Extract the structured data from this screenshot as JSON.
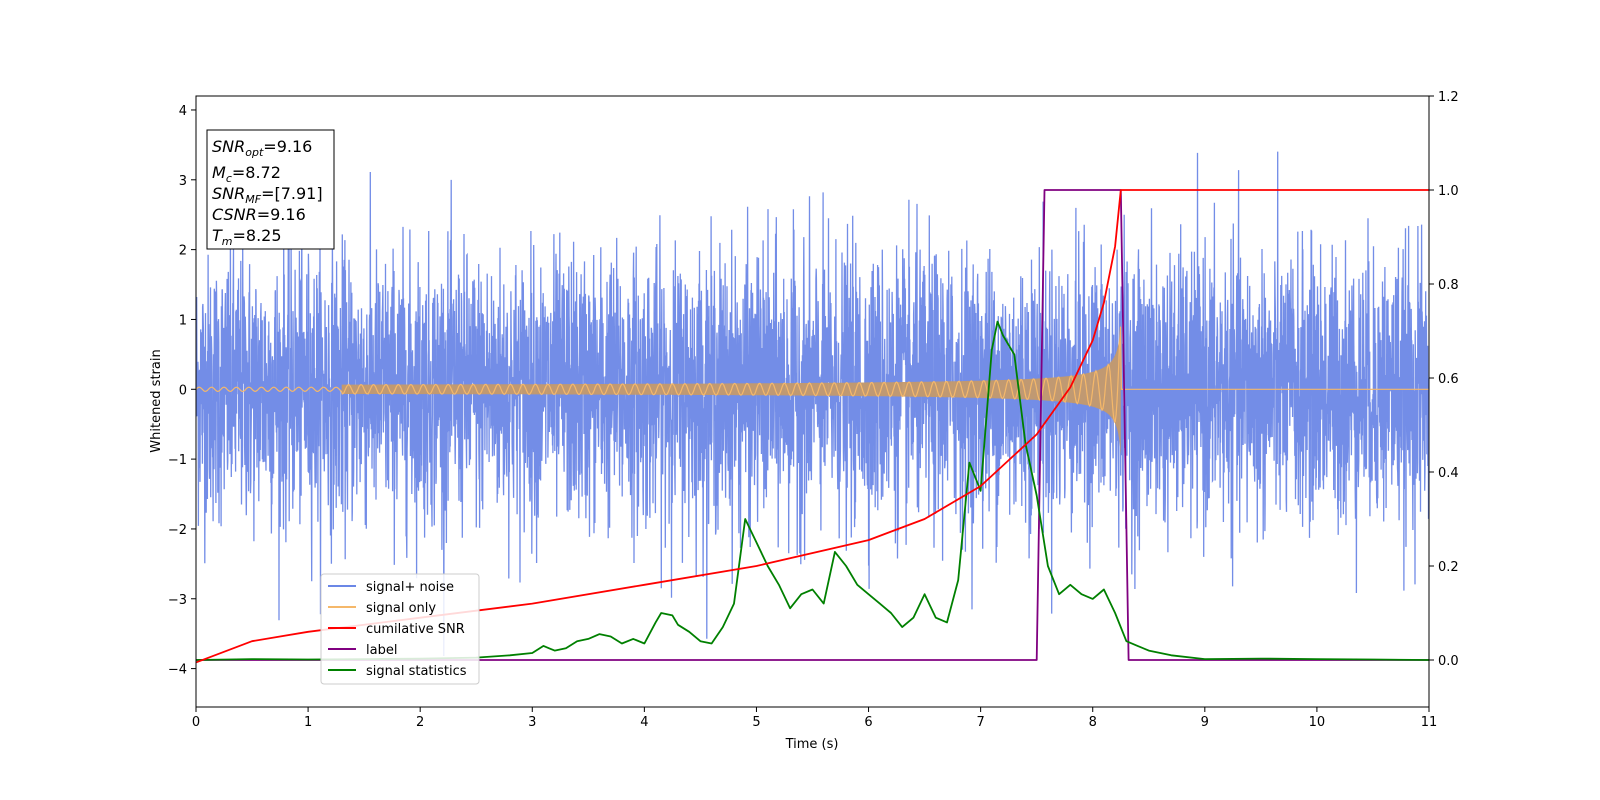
{
  "chart_data": {
    "type": "line",
    "xlabel": "Time (s)",
    "ylabel": "Whitened strain",
    "xlim": [
      0,
      11
    ],
    "ylim_left": [
      -4.55,
      4.2
    ],
    "ylim_right": [
      -0.1,
      1.2
    ],
    "xticks": [
      "0",
      "1",
      "2",
      "3",
      "4",
      "5",
      "6",
      "7",
      "8",
      "9",
      "10",
      "11"
    ],
    "yticks_left": [
      "−4",
      "−3",
      "−2",
      "−1",
      "0",
      "1",
      "2",
      "3",
      "4"
    ],
    "yticks_right": [
      "0.0",
      "0.2",
      "0.4",
      "0.6",
      "0.8",
      "1.0",
      "1.2"
    ],
    "legend_position": "lower-left",
    "annotation": {
      "lines": [
        {
          "sym": "SNR",
          "sub": "opt",
          "value": "=9.16"
        },
        {
          "sym": "M",
          "sub": "c",
          "value": "=8.72"
        },
        {
          "sym": "SNR",
          "sub": "MF",
          "value": "=[7.91]"
        },
        {
          "sym": "CSNR",
          "sub": "",
          "value": "=9.16"
        },
        {
          "sym": "T",
          "sub": "m",
          "value": "=8.25"
        }
      ]
    },
    "series": [
      {
        "name": "signal+ noise",
        "axis": "left",
        "color": "#6b87e6",
        "description_values": {
          "noise_sigma": 0.95,
          "t_start": 0,
          "t_end": 11
        }
      },
      {
        "name": "signal only",
        "axis": "left",
        "color": "#f5b86a",
        "chirp": {
          "t_merge": 8.25,
          "amp_start": 0.03,
          "amp_end": 0.95
        }
      },
      {
        "name": "cumilative SNR",
        "axis": "right",
        "color": "#ff0000",
        "x": [
          0,
          0.5,
          1,
          2,
          3,
          4,
          5,
          6,
          6.5,
          7,
          7.5,
          7.8,
          8.0,
          8.1,
          8.2,
          8.25,
          11
        ],
        "y": [
          -0.005,
          0.04,
          0.06,
          0.09,
          0.12,
          0.16,
          0.2,
          0.255,
          0.3,
          0.37,
          0.48,
          0.58,
          0.68,
          0.76,
          0.88,
          1.0,
          1.0
        ]
      },
      {
        "name": "label",
        "axis": "right",
        "color": "#800080",
        "x": [
          0,
          7.5,
          7.57,
          8.25,
          8.32,
          11
        ],
        "y": [
          0,
          0,
          1,
          1,
          0,
          0
        ]
      },
      {
        "name": "signal statistics",
        "axis": "right",
        "color": "#008000",
        "x": [
          0,
          0.5,
          1,
          1.5,
          2,
          2.5,
          2.8,
          3,
          3.1,
          3.15,
          3.2,
          3.3,
          3.4,
          3.5,
          3.6,
          3.7,
          3.8,
          3.9,
          4.0,
          4.1,
          4.15,
          4.25,
          4.3,
          4.4,
          4.5,
          4.6,
          4.7,
          4.8,
          4.9,
          5.0,
          5.1,
          5.2,
          5.3,
          5.4,
          5.5,
          5.6,
          5.7,
          5.8,
          5.9,
          6.0,
          6.1,
          6.2,
          6.3,
          6.4,
          6.5,
          6.6,
          6.7,
          6.8,
          6.9,
          7.0,
          7.1,
          7.15,
          7.2,
          7.3,
          7.4,
          7.5,
          7.6,
          7.7,
          7.8,
          7.9,
          8.0,
          8.1,
          8.2,
          8.3,
          8.4,
          8.5,
          8.7,
          9.0,
          9.5,
          10,
          10.5,
          11
        ],
        "y": [
          0.0,
          0.002,
          0.001,
          0.002,
          0.003,
          0.005,
          0.01,
          0.015,
          0.03,
          0.025,
          0.02,
          0.025,
          0.04,
          0.045,
          0.055,
          0.05,
          0.035,
          0.045,
          0.035,
          0.08,
          0.1,
          0.095,
          0.075,
          0.06,
          0.04,
          0.035,
          0.07,
          0.12,
          0.3,
          0.25,
          0.2,
          0.16,
          0.11,
          0.14,
          0.15,
          0.12,
          0.23,
          0.2,
          0.16,
          0.14,
          0.12,
          0.1,
          0.07,
          0.09,
          0.14,
          0.09,
          0.08,
          0.17,
          0.42,
          0.36,
          0.66,
          0.72,
          0.69,
          0.65,
          0.46,
          0.35,
          0.2,
          0.14,
          0.16,
          0.14,
          0.13,
          0.15,
          0.1,
          0.04,
          0.03,
          0.02,
          0.01,
          0.002,
          0.003,
          0.002,
          0.001,
          0.0
        ]
      }
    ]
  }
}
